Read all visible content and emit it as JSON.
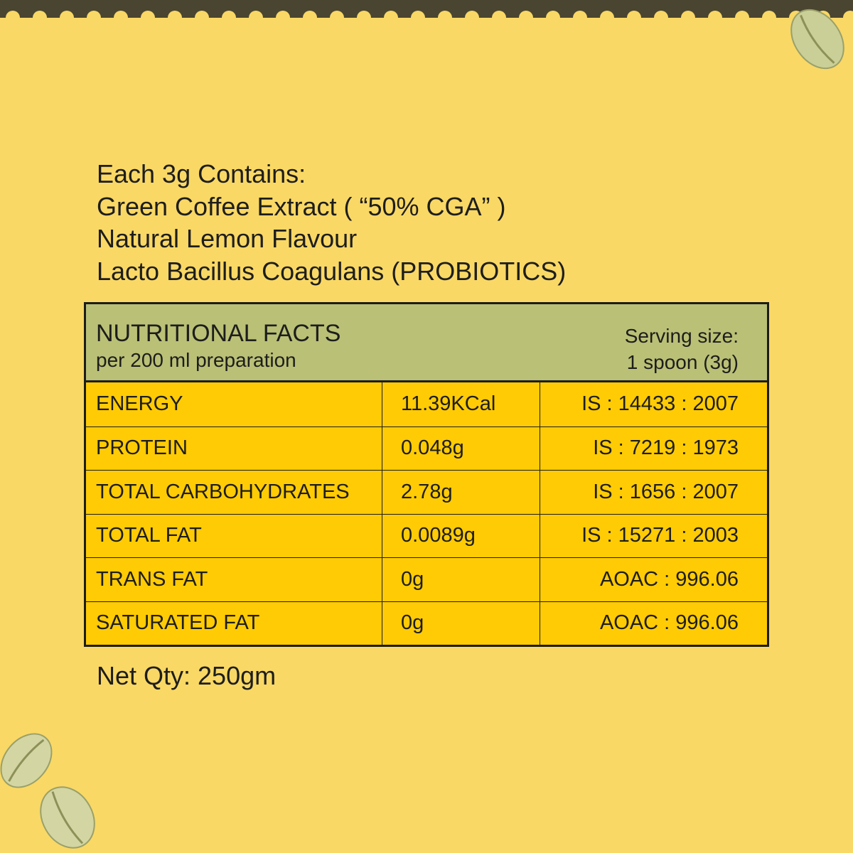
{
  "contents": {
    "lines": [
      "Each 3g Contains:",
      "Green Coffee Extract ( “50% CGA” )",
      "Natural Lemon Flavour",
      "Lacto Bacillus Coagulans (PROBIOTICS)"
    ]
  },
  "table": {
    "title": "NUTRITIONAL FACTS",
    "subtitle": "per 200 ml preparation",
    "serving_label": "Serving size:",
    "serving_value": "1 spoon (3g)",
    "rows": [
      {
        "nutrient": "ENERGY",
        "value": "11.39KCal",
        "method": "IS : 14433 : 2007"
      },
      {
        "nutrient": "PROTEIN",
        "value": "0.048g",
        "method": "IS : 7219 : 1973"
      },
      {
        "nutrient": "TOTAL CARBOHYDRATES",
        "value": "2.78g",
        "method": "IS : 1656 : 2007"
      },
      {
        "nutrient": "TOTAL FAT",
        "value": "0.0089g",
        "method": "IS : 15271 : 2003"
      },
      {
        "nutrient": "TRANS FAT",
        "value": "0g",
        "method": "AOAC : 996.06"
      },
      {
        "nutrient": "SATURATED FAT",
        "value": "0g",
        "method": "AOAC : 996.06"
      }
    ],
    "colors": {
      "header": "#bac076",
      "rows": "#ffcb05",
      "border": "#1d1d1b"
    }
  },
  "net_qty": "Net Qty: 250gm",
  "colors": {
    "background": "#f9d865",
    "top_band": "#4a4530"
  }
}
